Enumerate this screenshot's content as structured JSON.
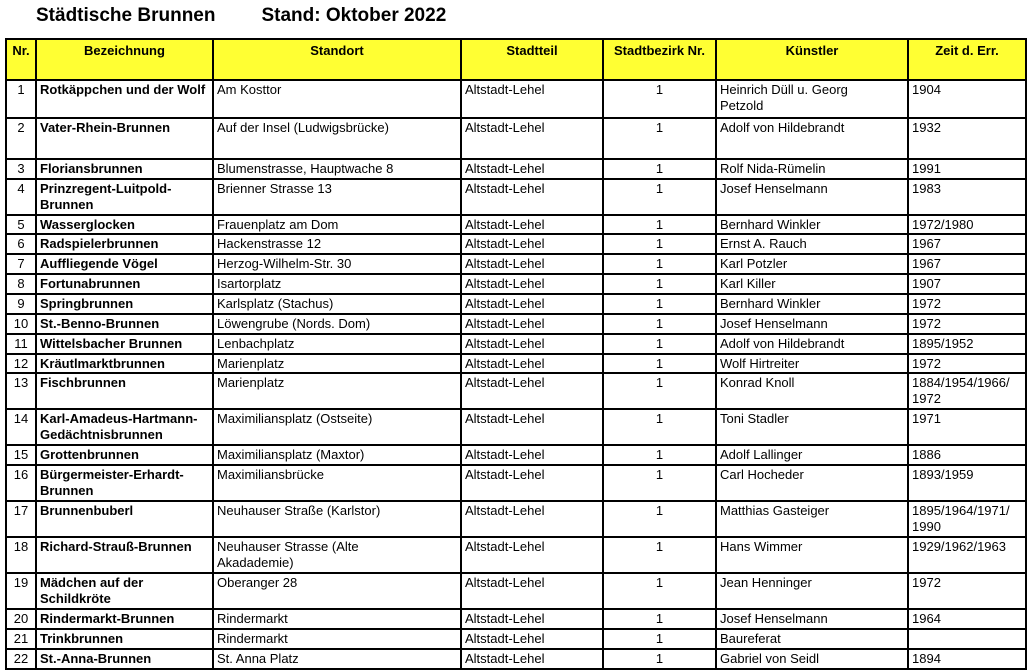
{
  "title": "Städtische Brunnen",
  "subtitle": "Stand: Oktober 2022",
  "colors": {
    "header_bg": "#FFFF33",
    "border": "#000000",
    "text": "#000000",
    "page_bg": "#FFFFFF"
  },
  "table": {
    "headers": [
      "Nr.",
      "Bezeichnung",
      "Standort",
      "Stadtteil",
      "Stadtbezirk Nr.",
      "Künstler",
      "Zeit d. Err."
    ],
    "rows": [
      {
        "nr": "1",
        "bezeichnung": "Rotkäppchen und der Wolf",
        "standort": "Am Kosttor",
        "stadtteil": "Altstadt-Lehel",
        "stadtbezirk": "1",
        "kuenstler": "Heinrich Düll u. Georg\nPetzold",
        "zeit": "1904"
      },
      {
        "nr": "2",
        "bezeichnung": "Vater-Rhein-Brunnen",
        "standort": "Auf der Insel (Ludwigsbrücke)",
        "stadtteil": "Altstadt-Lehel",
        "stadtbezirk": "1",
        "kuenstler": "Adolf von Hildebrandt",
        "zeit": "1932"
      },
      {
        "nr": "3",
        "bezeichnung": "Floriansbrunnen",
        "standort": "Blumenstrasse, Hauptwache 8",
        "stadtteil": "Altstadt-Lehel",
        "stadtbezirk": "1",
        "kuenstler": "Rolf Nida-Rümelin",
        "zeit": "1991"
      },
      {
        "nr": "4",
        "bezeichnung": "Prinzregent-Luitpold-\nBrunnen",
        "standort": "Brienner Strasse 13",
        "stadtteil": "Altstadt-Lehel",
        "stadtbezirk": "1",
        "kuenstler": "Josef Henselmann",
        "zeit": "1983"
      },
      {
        "nr": "5",
        "bezeichnung": "Wasserglocken",
        "standort": "Frauenplatz am Dom",
        "stadtteil": "Altstadt-Lehel",
        "stadtbezirk": "1",
        "kuenstler": "Bernhard Winkler",
        "zeit": "1972/1980"
      },
      {
        "nr": "6",
        "bezeichnung": "Radspielerbrunnen",
        "standort": "Hackenstrasse 12",
        "stadtteil": "Altstadt-Lehel",
        "stadtbezirk": "1",
        "kuenstler": "Ernst A. Rauch",
        "zeit": "1967"
      },
      {
        "nr": "7",
        "bezeichnung": "Auffliegende Vögel",
        "standort": "Herzog-Wilhelm-Str. 30",
        "stadtteil": "Altstadt-Lehel",
        "stadtbezirk": "1",
        "kuenstler": "Karl Potzler",
        "zeit": "1967"
      },
      {
        "nr": "8",
        "bezeichnung": "Fortunabrunnen",
        "standort": "Isartorplatz",
        "stadtteil": "Altstadt-Lehel",
        "stadtbezirk": "1",
        "kuenstler": "Karl Killer",
        "zeit": "1907"
      },
      {
        "nr": "9",
        "bezeichnung": "Springbrunnen",
        "standort": "Karlsplatz (Stachus)",
        "stadtteil": "Altstadt-Lehel",
        "stadtbezirk": "1",
        "kuenstler": "Bernhard Winkler",
        "zeit": "1972"
      },
      {
        "nr": "10",
        "bezeichnung": "St.-Benno-Brunnen",
        "standort": "Löwengrube (Nords. Dom)",
        "stadtteil": "Altstadt-Lehel",
        "stadtbezirk": "1",
        "kuenstler": "Josef Henselmann",
        "zeit": "1972"
      },
      {
        "nr": "11",
        "bezeichnung": "Wittelsbacher Brunnen",
        "standort": "Lenbachplatz",
        "stadtteil": "Altstadt-Lehel",
        "stadtbezirk": "1",
        "kuenstler": "Adolf von Hildebrandt",
        "zeit": "1895/1952"
      },
      {
        "nr": "12",
        "bezeichnung": "Kräutlmarktbrunnen",
        "standort": "Marienplatz",
        "stadtteil": "Altstadt-Lehel",
        "stadtbezirk": "1",
        "kuenstler": "Wolf Hirtreiter",
        "zeit": "1972"
      },
      {
        "nr": "13",
        "bezeichnung": "Fischbrunnen",
        "standort": "Marienplatz",
        "stadtteil": "Altstadt-Lehel",
        "stadtbezirk": "1",
        "kuenstler": "Konrad Knoll",
        "zeit": "1884/1954/1966/\n1972"
      },
      {
        "nr": "14",
        "bezeichnung": "Karl-Amadeus-Hartmann-\nGedächtnisbrunnen",
        "standort": "Maximiliansplatz (Ostseite)",
        "stadtteil": "Altstadt-Lehel",
        "stadtbezirk": "1",
        "kuenstler": "Toni Stadler",
        "zeit": "1971"
      },
      {
        "nr": "15",
        "bezeichnung": "Grottenbrunnen",
        "standort": "Maximiliansplatz (Maxtor)",
        "stadtteil": "Altstadt-Lehel",
        "stadtbezirk": "1",
        "kuenstler": "Adolf Lallinger",
        "zeit": "1886"
      },
      {
        "nr": "16",
        "bezeichnung": "Bürgermeister-Erhardt-\nBrunnen",
        "standort": "Maximiliansbrücke",
        "stadtteil": "Altstadt-Lehel",
        "stadtbezirk": "1",
        "kuenstler": "Carl Hocheder",
        "zeit": "1893/1959"
      },
      {
        "nr": "17",
        "bezeichnung": "Brunnenbuberl",
        "standort": "Neuhauser Straße (Karlstor)",
        "stadtteil": "Altstadt-Lehel",
        "stadtbezirk": "1",
        "kuenstler": "Matthias Gasteiger",
        "zeit": "1895/1964/1971/\n1990"
      },
      {
        "nr": "18",
        "bezeichnung": "Richard-Strauß-Brunnen",
        "standort": "Neuhauser Strasse (Alte\nAkadademie)",
        "stadtteil": "Altstadt-Lehel",
        "stadtbezirk": "1",
        "kuenstler": "Hans Wimmer",
        "zeit": "1929/1962/1963"
      },
      {
        "nr": "19",
        "bezeichnung": "Mädchen auf der\nSchildkröte",
        "standort": "Oberanger 28",
        "stadtteil": "Altstadt-Lehel",
        "stadtbezirk": "1",
        "kuenstler": "Jean Henninger",
        "zeit": "1972"
      },
      {
        "nr": "20",
        "bezeichnung": "Rindermarkt-Brunnen",
        "standort": "Rindermarkt",
        "stadtteil": "Altstadt-Lehel",
        "stadtbezirk": "1",
        "kuenstler": "Josef Henselmann",
        "zeit": "1964"
      },
      {
        "nr": "21",
        "bezeichnung": "Trinkbrunnen",
        "standort": "Rindermarkt",
        "stadtteil": "Altstadt-Lehel",
        "stadtbezirk": "1",
        "kuenstler": "Baureferat",
        "zeit": ""
      },
      {
        "nr": "22",
        "bezeichnung": "St.-Anna-Brunnen",
        "standort": "St. Anna Platz",
        "stadtteil": "Altstadt-Lehel",
        "stadtbezirk": "1",
        "kuenstler": "Gabriel von Seidl",
        "zeit": "1894"
      }
    ]
  }
}
